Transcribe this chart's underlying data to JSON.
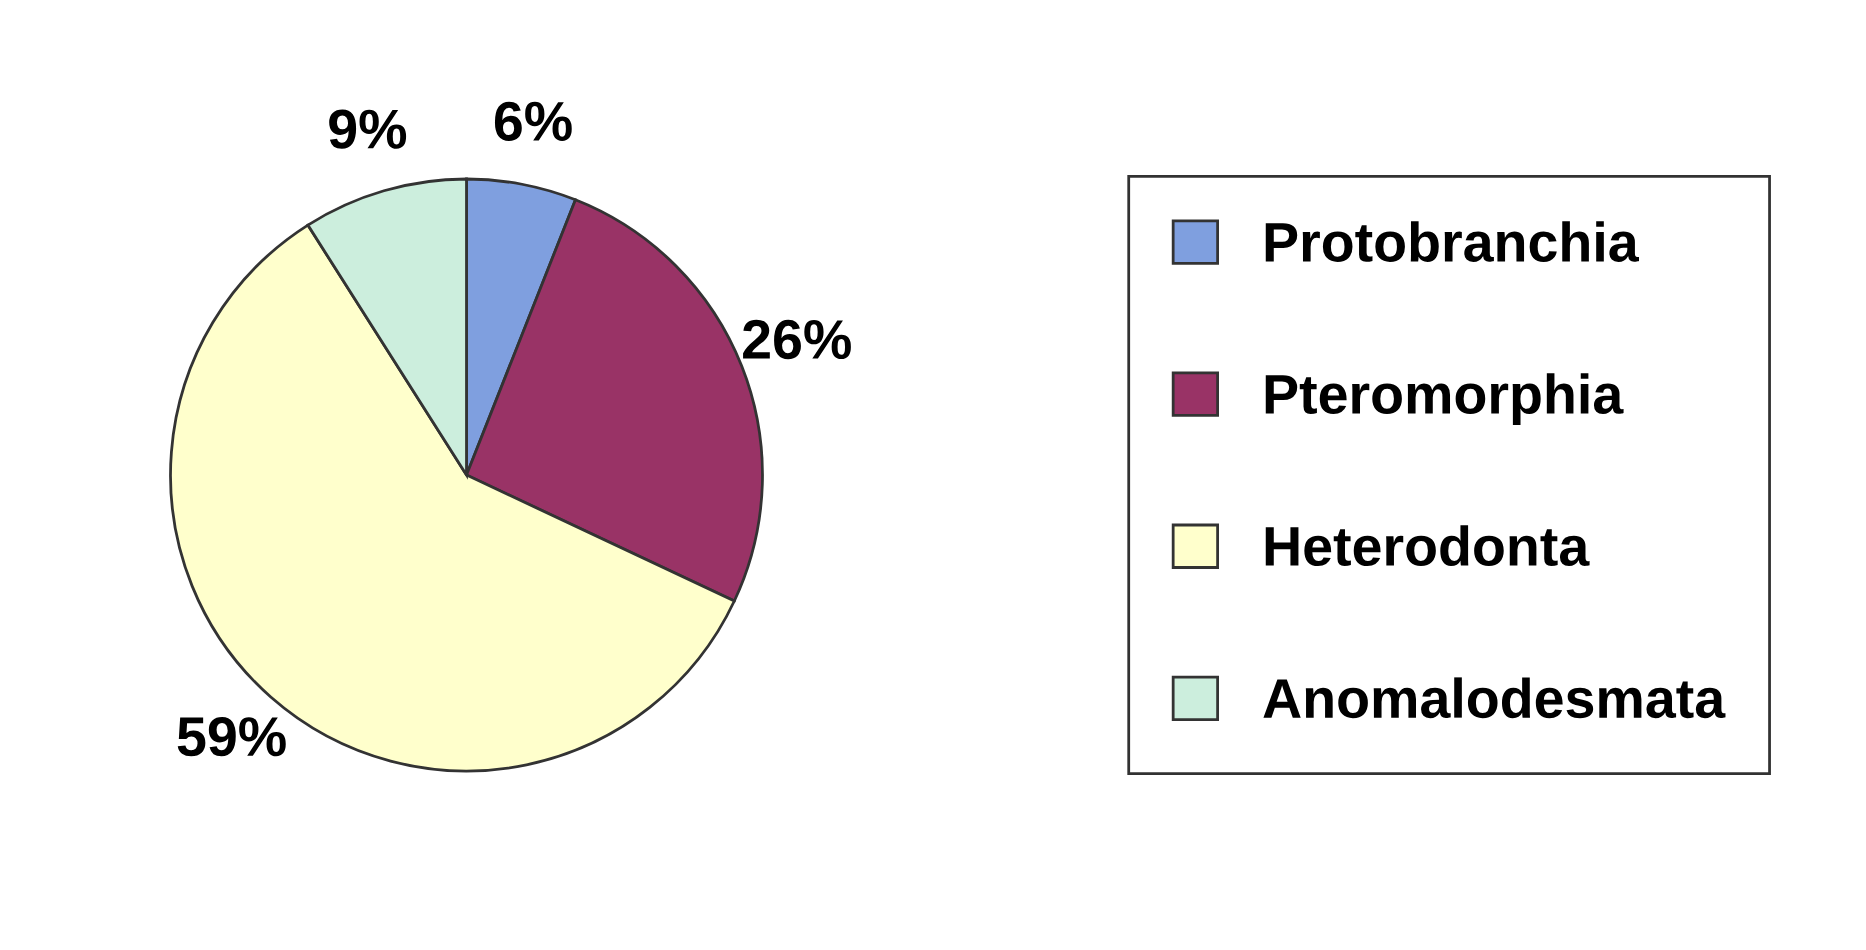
{
  "chart_data": {
    "type": "pie",
    "categories": [
      "Protobranchia",
      "Pteromorphia",
      "Heterodonta",
      "Anomalodesmata"
    ],
    "values": [
      6,
      26,
      59,
      9
    ],
    "colors": [
      "#7f9fdf",
      "#993366",
      "#ffffcc",
      "#cceedd"
    ],
    "value_labels": [
      "6%",
      "26%",
      "59%",
      "9%"
    ],
    "legend": "right"
  }
}
